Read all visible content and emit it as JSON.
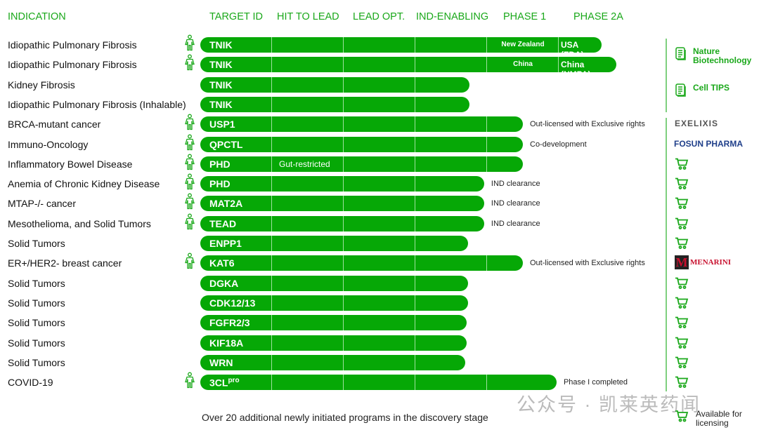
{
  "headers": [
    {
      "label": "INDICATION"
    },
    {
      "label": "TARGET ID"
    },
    {
      "label": "HIT TO LEAD"
    },
    {
      "label": "LEAD OPT."
    },
    {
      "label": "IND-ENABLING"
    },
    {
      "label": "PHASE 1"
    },
    {
      "label": "PHASE 2A"
    }
  ],
  "accent": "#06a806",
  "rows": [
    {
      "indication": "Idiopathic Pulmonary Fibrosis",
      "target": "TNIK",
      "human": true,
      "progress_stages": 5.6,
      "inner": [
        {
          "text": "New Zealand",
          "stage": 4
        },
        {
          "text": "USA (FDA)",
          "stage": 5
        }
      ],
      "partner": "pub"
    },
    {
      "indication": "Idiopathic Pulmonary Fibrosis",
      "target": "TNIK",
      "human": true,
      "progress_stages": 5.8,
      "inner": [
        {
          "text": "China",
          "stage": 4
        },
        {
          "text": "China (NMPA)",
          "stage": 5
        }
      ],
      "partner": "pub"
    },
    {
      "indication": "Kidney Fibrosis",
      "target": "TNIK",
      "human": false,
      "progress_stages": 3.75
    },
    {
      "indication": "Idiopathic Pulmonary Fibrosis (Inhalable)",
      "target": "TNIK",
      "human": false,
      "progress_stages": 3.75
    },
    {
      "indication": "BRCA-mutant cancer",
      "target": "USP1",
      "human": true,
      "progress_stages": 4.5,
      "note": "Out-licensed with Exclusive rights",
      "partner": "exelixis"
    },
    {
      "indication": "Immuno-Oncology",
      "target": "QPCTL",
      "human": true,
      "progress_stages": 4.5,
      "note": "Co-development",
      "partner": "fosun"
    },
    {
      "indication": "Inflammatory Bowel Disease",
      "target": "PHD",
      "human": true,
      "progress_stages": 4.5,
      "inner": [
        {
          "text": "Gut-restricted",
          "stage": 1
        }
      ],
      "partner": "cart"
    },
    {
      "indication": "Anemia of Chronic Kidney Disease",
      "target": "PHD",
      "human": true,
      "progress_stages": 3.96,
      "note": "IND clearance",
      "partner": "cart"
    },
    {
      "indication": "MTAP-/- cancer",
      "target": "MAT2A",
      "human": true,
      "progress_stages": 3.96,
      "note": "IND clearance",
      "partner": "cart"
    },
    {
      "indication": "Mesothelioma, and Solid Tumors",
      "target": "TEAD",
      "human": true,
      "progress_stages": 3.96,
      "note": "IND clearance",
      "partner": "cart"
    },
    {
      "indication": "Solid Tumors",
      "target": "ENPP1",
      "human": false,
      "progress_stages": 3.74,
      "partner": "cart"
    },
    {
      "indication": "ER+/HER2- breast cancer",
      "target": "KAT6",
      "human": true,
      "progress_stages": 4.5,
      "note": "Out-licensed with Exclusive rights",
      "partner": "menarini"
    },
    {
      "indication": "Solid Tumors",
      "target": "DGKA",
      "human": false,
      "progress_stages": 3.74,
      "partner": "cart"
    },
    {
      "indication": "Solid Tumors",
      "target": "CDK12/13",
      "human": false,
      "progress_stages": 3.74,
      "partner": "cart"
    },
    {
      "indication": "Solid Tumors",
      "target": "FGFR2/3",
      "human": false,
      "progress_stages": 3.72,
      "partner": "cart"
    },
    {
      "indication": "Solid Tumors",
      "target": "KIF18A",
      "human": false,
      "progress_stages": 3.72,
      "partner": "cart"
    },
    {
      "indication": "Solid Tumors",
      "target": "WRN",
      "human": false,
      "progress_stages": 3.7,
      "partner": "cart"
    },
    {
      "indication": "COVID-19",
      "target": "3CL",
      "target_sup": "pro",
      "human": true,
      "progress_stages": 4.97,
      "note": "Phase I completed",
      "partner": "cart"
    }
  ],
  "publications": [
    {
      "label": "Nature Biotechnology"
    },
    {
      "label": "Cell TIPS"
    }
  ],
  "partners": {
    "exelixis": "EXELIXIS",
    "fosun": "FOSUN PHARMA",
    "menarini": "MENARINI",
    "menarini_sub": "group"
  },
  "footer": "Over 20 additional newly initiated programs in the discovery stage",
  "legend": {
    "cart_label": "Available for licensing"
  },
  "watermark": "公众号 · 凯莱英药闻"
}
